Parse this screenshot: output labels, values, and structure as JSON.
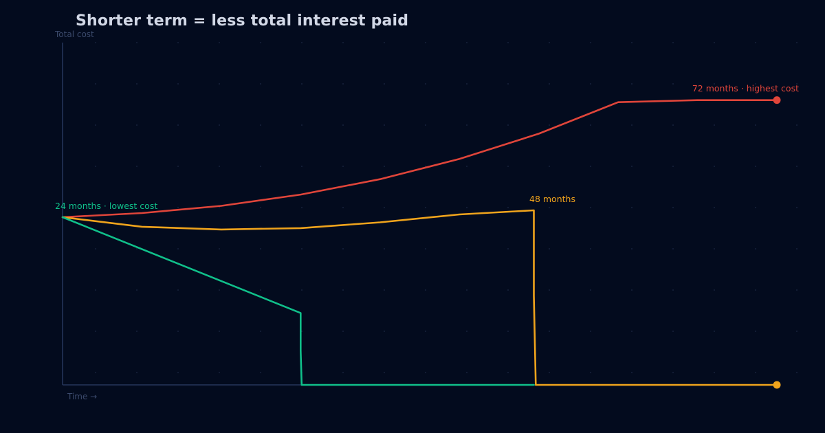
{
  "chart_data": {
    "type": "line",
    "title": "Shorter term = less total interest paid",
    "ylabel": "Total cost",
    "xlabel": "Time →",
    "xlim": [
      0,
      72
    ],
    "ylim": [
      0,
      100
    ],
    "grid": true,
    "series": [
      {
        "name": "72 months",
        "color": "#e0453a",
        "label": "72 months · highest cost",
        "end_marker": true,
        "points": [
          [
            0,
            49
          ],
          [
            8,
            50.2
          ],
          [
            16,
            52.3
          ],
          [
            24,
            55.6
          ],
          [
            32,
            60.1
          ],
          [
            40,
            66
          ],
          [
            48,
            73.4
          ],
          [
            56,
            82.6
          ],
          [
            64,
            83.2
          ],
          [
            72,
            83.2
          ]
        ]
      },
      {
        "name": "48 months",
        "color": "#f0a41c",
        "label": "48 months",
        "end_marker": true,
        "points": [
          [
            0,
            49
          ],
          [
            8,
            46.2
          ],
          [
            16,
            45.4
          ],
          [
            24,
            45.8
          ],
          [
            32,
            47.5
          ],
          [
            40,
            49.8
          ],
          [
            47.5,
            51
          ],
          [
            47.5,
            26
          ],
          [
            47.7,
            0
          ],
          [
            72,
            0
          ]
        ]
      },
      {
        "name": "24 months",
        "color": "#10c08a",
        "label": "24 months · lowest cost",
        "end_marker": false,
        "points": [
          [
            0,
            49
          ],
          [
            24,
            21
          ],
          [
            24,
            10
          ],
          [
            24.1,
            0
          ],
          [
            47.5,
            0
          ]
        ]
      }
    ]
  }
}
